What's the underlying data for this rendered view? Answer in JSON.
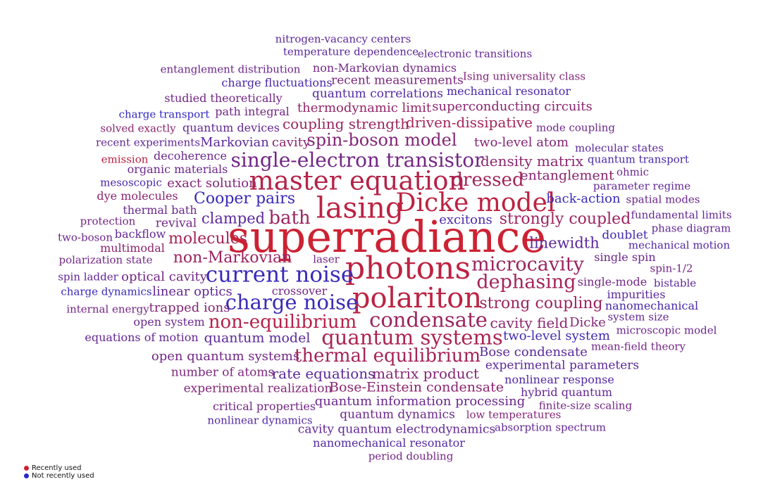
{
  "colors": {
    "recent": "#cc2233",
    "old": "#2a2ac8"
  },
  "legend": {
    "recent_label": "Recently used",
    "old_label": "Not recently used"
  },
  "words": [
    {
      "text": "nitrogen-vacancy centers",
      "weight": 0.3
    },
    {
      "text": "temperature dependence",
      "weight": 0.3
    },
    {
      "text": "electronic transitions",
      "weight": 0.35
    },
    {
      "text": "entanglement distribution",
      "weight": 0.4
    },
    {
      "text": "non-Markovian dynamics",
      "weight": 0.45
    },
    {
      "text": "Ising universality class",
      "weight": 0.55
    },
    {
      "text": "charge fluctuations",
      "weight": 0.2
    },
    {
      "text": "recent measurements",
      "weight": 0.5
    },
    {
      "text": "studied theoretically",
      "weight": 0.45
    },
    {
      "text": "quantum correlations",
      "weight": 0.25
    },
    {
      "text": "mechanical resonator",
      "weight": 0.2
    },
    {
      "text": "charge transport",
      "weight": 0.05
    },
    {
      "text": "path integral",
      "weight": 0.45
    },
    {
      "text": "thermodynamic limit",
      "weight": 0.65
    },
    {
      "text": "superconducting circuits",
      "weight": 0.6
    },
    {
      "text": "solved exactly",
      "weight": 0.6
    },
    {
      "text": "quantum devices",
      "weight": 0.35
    },
    {
      "text": "coupling strength",
      "weight": 0.7
    },
    {
      "text": "driven-dissipative",
      "weight": 0.75
    },
    {
      "text": "mode coupling",
      "weight": 0.4
    },
    {
      "text": "recent experiments",
      "weight": 0.35
    },
    {
      "text": "Markovian",
      "weight": 0.3
    },
    {
      "text": "cavity",
      "weight": 0.6
    },
    {
      "text": "spin-boson model",
      "weight": 0.55
    },
    {
      "text": "two-level atom",
      "weight": 0.55
    },
    {
      "text": "molecular states",
      "weight": 0.3
    },
    {
      "text": "emission",
      "weight": 0.9
    },
    {
      "text": "decoherence",
      "weight": 0.4
    },
    {
      "text": "single-electron transistor",
      "weight": 0.45
    },
    {
      "text": "density matrix",
      "weight": 0.6
    },
    {
      "text": "quantum transport",
      "weight": 0.2
    },
    {
      "text": "organic materials",
      "weight": 0.4
    },
    {
      "text": "ohmic",
      "weight": 0.4
    },
    {
      "text": "mesoscopic",
      "weight": 0.2
    },
    {
      "text": "exact solution",
      "weight": 0.55
    },
    {
      "text": "master equation",
      "weight": 0.85
    },
    {
      "text": "dressed",
      "weight": 0.75
    },
    {
      "text": "entanglement",
      "weight": 0.6
    },
    {
      "text": "parameter regime",
      "weight": 0.35
    },
    {
      "text": "dye molecules",
      "weight": 0.6
    },
    {
      "text": "lasing",
      "weight": 0.9
    },
    {
      "text": "Dicke model",
      "weight": 0.9
    },
    {
      "text": "Cooper pairs",
      "weight": 0.1
    },
    {
      "text": "back-action",
      "weight": 0.1
    },
    {
      "text": "spatial modes",
      "weight": 0.4
    },
    {
      "text": "thermal bath",
      "weight": 0.4
    },
    {
      "text": "fundamental limits",
      "weight": 0.35
    },
    {
      "text": "protection",
      "weight": 0.45
    },
    {
      "text": "revival",
      "weight": 0.45
    },
    {
      "text": "clamped",
      "weight": 0.3
    },
    {
      "text": "bath",
      "weight": 0.7
    },
    {
      "text": "excitons",
      "weight": 0.2
    },
    {
      "text": "strongly coupled",
      "weight": 0.7
    },
    {
      "text": "phase diagram",
      "weight": 0.35
    },
    {
      "text": "two-boson",
      "weight": 0.4
    },
    {
      "text": "backflow",
      "weight": 0.35
    },
    {
      "text": "molecules",
      "weight": 0.75
    },
    {
      "text": "superradiance",
      "weight": 1.0
    },
    {
      "text": "doublet",
      "weight": 0.15
    },
    {
      "text": "multimodal",
      "weight": 0.6
    },
    {
      "text": "linewidth",
      "weight": 0.3
    },
    {
      "text": "mechanical motion",
      "weight": 0.25
    },
    {
      "text": "polarization state",
      "weight": 0.45
    },
    {
      "text": "non-Markovian",
      "weight": 0.7
    },
    {
      "text": "laser",
      "weight": 0.45
    },
    {
      "text": "photons",
      "weight": 0.9
    },
    {
      "text": "microcavity",
      "weight": 0.7
    },
    {
      "text": "single spin",
      "weight": 0.4
    },
    {
      "text": "spin ladder",
      "weight": 0.35
    },
    {
      "text": "optical cavity",
      "weight": 0.45
    },
    {
      "text": "current noise",
      "weight": 0.1
    },
    {
      "text": "spin-1/2",
      "weight": 0.45
    },
    {
      "text": "dephasing",
      "weight": 0.75
    },
    {
      "text": "single-mode",
      "weight": 0.45
    },
    {
      "text": "bistable",
      "weight": 0.3
    },
    {
      "text": "charge dynamics",
      "weight": 0.1
    },
    {
      "text": "linear optics",
      "weight": 0.35
    },
    {
      "text": "crossover",
      "weight": 0.45
    },
    {
      "text": "impurities",
      "weight": 0.3
    },
    {
      "text": "polariton",
      "weight": 0.9
    },
    {
      "text": "internal energy",
      "weight": 0.45
    },
    {
      "text": "trapped ions",
      "weight": 0.55
    },
    {
      "text": "charge noise",
      "weight": 0.1
    },
    {
      "text": "strong coupling",
      "weight": 0.7
    },
    {
      "text": "nanomechanical",
      "weight": 0.2
    },
    {
      "text": "system size",
      "weight": 0.35
    },
    {
      "text": "open system",
      "weight": 0.4
    },
    {
      "text": "non-equilibrium",
      "weight": 0.85
    },
    {
      "text": "condensate",
      "weight": 0.7
    },
    {
      "text": "cavity field",
      "weight": 0.6
    },
    {
      "text": "Dicke",
      "weight": 0.55
    },
    {
      "text": "microscopic model",
      "weight": 0.4
    },
    {
      "text": "equations of motion",
      "weight": 0.35
    },
    {
      "text": "quantum model",
      "weight": 0.3
    },
    {
      "text": "quantum systems",
      "weight": 0.8
    },
    {
      "text": "two-level system",
      "weight": 0.15
    },
    {
      "text": "mean-field theory",
      "weight": 0.45
    },
    {
      "text": "open quantum systems",
      "weight": 0.45
    },
    {
      "text": "thermal equilibrium",
      "weight": 0.75
    },
    {
      "text": "Bose condensate",
      "weight": 0.3
    },
    {
      "text": "experimental parameters",
      "weight": 0.3
    },
    {
      "text": "number of atoms",
      "weight": 0.5
    },
    {
      "text": "rate equations",
      "weight": 0.3
    },
    {
      "text": "matrix product",
      "weight": 0.55
    },
    {
      "text": "nonlinear response",
      "weight": 0.25
    },
    {
      "text": "experimental realization",
      "weight": 0.55
    },
    {
      "text": "Bose-Einstein condensate",
      "weight": 0.6
    },
    {
      "text": "hybrid quantum",
      "weight": 0.35
    },
    {
      "text": "critical properties",
      "weight": 0.45
    },
    {
      "text": "quantum information processing",
      "weight": 0.4
    },
    {
      "text": "finite-size scaling",
      "weight": 0.45
    },
    {
      "text": "nonlinear dynamics",
      "weight": 0.25
    },
    {
      "text": "quantum dynamics",
      "weight": 0.4
    },
    {
      "text": "low temperatures",
      "weight": 0.55
    },
    {
      "text": "cavity quantum electrodynamics",
      "weight": 0.35
    },
    {
      "text": "absorption spectrum",
      "weight": 0.35
    },
    {
      "text": "nanomechanical resonator",
      "weight": 0.25
    },
    {
      "text": "period doubling",
      "weight": 0.45
    }
  ]
}
